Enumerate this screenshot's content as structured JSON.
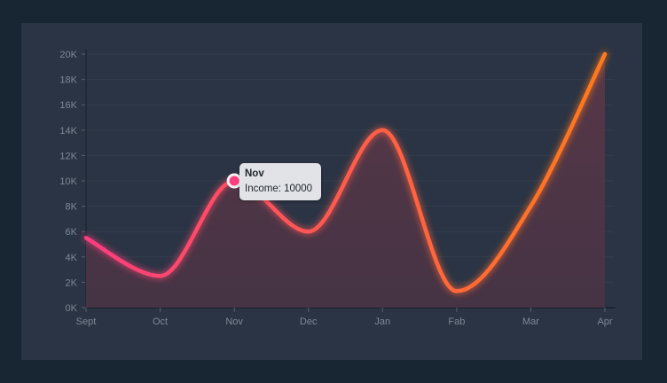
{
  "colors": {
    "background": "#182533",
    "panel": "#2b3444",
    "line_start": "#ff3d7f",
    "line_end": "#ff7a1a",
    "grid": "#323c4c",
    "tick_text": "#7f8896",
    "tooltip_bg": "#e1e3e6"
  },
  "chart_data": {
    "type": "area",
    "categories": [
      "Sept",
      "Oct",
      "Nov",
      "Dec",
      "Jan",
      "Fab",
      "Mar",
      "Apr"
    ],
    "series": [
      {
        "values": [
          5500,
          2500,
          10000,
          6000,
          14000,
          1300,
          8000,
          20000
        ]
      }
    ],
    "ylim": [
      0,
      20000
    ],
    "yticks": [
      0,
      2000,
      4000,
      6000,
      8000,
      10000,
      12000,
      14000,
      16000,
      18000,
      20000
    ],
    "ytick_labels": [
      "0K",
      "2K",
      "4K",
      "6K",
      "8K",
      "10K",
      "12K",
      "14K",
      "16K",
      "18K",
      "20K"
    ],
    "grid": true,
    "smooth": true
  },
  "tooltip": {
    "title": "Nov",
    "label": "Income: 10000",
    "index": 2
  }
}
